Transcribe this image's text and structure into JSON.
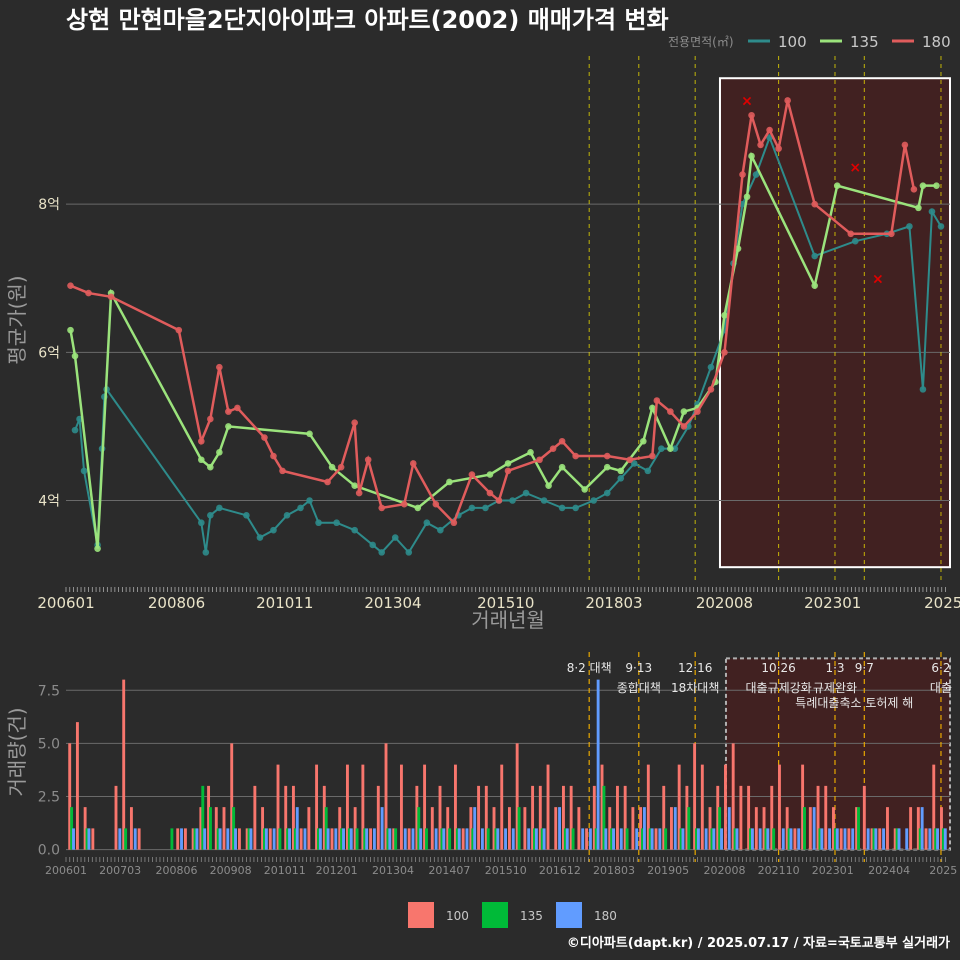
{
  "title": "상현 만현마을2단지아이파크 아파트(2002) 매매가격 변화",
  "credit": "©디아파트(dapt.kr) / 2025.07.17 / 자료=국토교통부 실거래가",
  "colors": {
    "bg": "#2b2b2b",
    "s100_line": "#2e8b8b",
    "s135": "#9be37c",
    "s180": "#e05c5c",
    "v100": "#f8766d",
    "v135": "#00ba38",
    "v180": "#619cff",
    "event": "#e8d800",
    "highlight": "#4a1f1f"
  },
  "chart_data": [
    {
      "type": "line",
      "title": "상현 만현마을2단지아이파크 아파트(2002) 매매가격 변화",
      "xlabel": "거래년월",
      "ylabel": "평균가(원)",
      "x_ticks": [
        "200601",
        "200806",
        "201011",
        "201304",
        "201510",
        "201803",
        "202008",
        "202301",
        "2025"
      ],
      "y_ticks": [
        {
          "value": 4,
          "label": "4억"
        },
        {
          "value": 6,
          "label": "6억"
        },
        {
          "value": 8,
          "label": "8억"
        }
      ],
      "x_range": [
        2006.0,
        2025.6
      ],
      "y_range": [
        2.9,
        10.0
      ],
      "legend_title": "전용면적(㎡)",
      "legend": [
        "100",
        "135",
        "180"
      ],
      "grid": true,
      "highlight_range": [
        "2020.5",
        "2025.6"
      ],
      "series": [
        {
          "name": "100",
          "values": [
            [
              2006.2,
              4.95
            ],
            [
              2006.3,
              5.1
            ],
            [
              2006.4,
              4.4
            ],
            [
              2006.7,
              3.4
            ],
            [
              2006.8,
              4.7
            ],
            [
              2006.85,
              5.4
            ],
            [
              2006.9,
              5.5
            ],
            [
              2009.0,
              3.7
            ],
            [
              2009.1,
              3.3
            ],
            [
              2009.2,
              3.8
            ],
            [
              2009.4,
              3.9
            ],
            [
              2010.0,
              3.8
            ],
            [
              2010.3,
              3.5
            ],
            [
              2010.6,
              3.6
            ],
            [
              2010.9,
              3.8
            ],
            [
              2011.2,
              3.9
            ],
            [
              2011.4,
              4.0
            ],
            [
              2011.6,
              3.7
            ],
            [
              2012.0,
              3.7
            ],
            [
              2012.4,
              3.6
            ],
            [
              2012.8,
              3.4
            ],
            [
              2013.0,
              3.3
            ],
            [
              2013.3,
              3.5
            ],
            [
              2013.6,
              3.3
            ],
            [
              2014.0,
              3.7
            ],
            [
              2014.3,
              3.6
            ],
            [
              2014.7,
              3.8
            ],
            [
              2015.0,
              3.9
            ],
            [
              2015.3,
              3.9
            ],
            [
              2015.6,
              4.0
            ],
            [
              2015.9,
              4.0
            ],
            [
              2016.2,
              4.1
            ],
            [
              2016.6,
              4.0
            ],
            [
              2017.0,
              3.9
            ],
            [
              2017.3,
              3.9
            ],
            [
              2017.7,
              4.0
            ],
            [
              2018.0,
              4.1
            ],
            [
              2018.3,
              4.3
            ],
            [
              2018.6,
              4.5
            ],
            [
              2018.9,
              4.4
            ],
            [
              2019.2,
              4.7
            ],
            [
              2019.5,
              4.7
            ],
            [
              2019.8,
              5.0
            ],
            [
              2020.0,
              5.3
            ],
            [
              2020.3,
              5.8
            ],
            [
              2020.6,
              6.3
            ],
            [
              2020.8,
              7.2
            ],
            [
              2021.0,
              8.0
            ],
            [
              2021.3,
              8.4
            ],
            [
              2021.6,
              8.9
            ],
            [
              2022.6,
              7.3
            ],
            [
              2023.5,
              7.5
            ],
            [
              2024.2,
              7.6
            ],
            [
              2024.7,
              7.7
            ],
            [
              2025.0,
              5.5
            ],
            [
              2025.2,
              7.9
            ],
            [
              2025.4,
              7.7
            ]
          ]
        },
        {
          "name": "135",
          "values": [
            [
              2006.1,
              6.3
            ],
            [
              2006.2,
              5.95
            ],
            [
              2006.7,
              3.35
            ],
            [
              2007.0,
              6.8
            ],
            [
              2009.0,
              4.55
            ],
            [
              2009.2,
              4.45
            ],
            [
              2009.4,
              4.65
            ],
            [
              2009.6,
              5.0
            ],
            [
              2011.4,
              4.9
            ],
            [
              2011.9,
              4.45
            ],
            [
              2012.4,
              4.2
            ],
            [
              2013.8,
              3.9
            ],
            [
              2014.5,
              4.25
            ],
            [
              2015.4,
              4.35
            ],
            [
              2015.8,
              4.5
            ],
            [
              2016.3,
              4.65
            ],
            [
              2016.7,
              4.2
            ],
            [
              2017.0,
              4.45
            ],
            [
              2017.5,
              4.15
            ],
            [
              2018.0,
              4.45
            ],
            [
              2018.3,
              4.4
            ],
            [
              2018.8,
              4.8
            ],
            [
              2019.0,
              5.25
            ],
            [
              2019.4,
              4.7
            ],
            [
              2019.7,
              5.2
            ],
            [
              2020.0,
              5.25
            ],
            [
              2020.4,
              5.6
            ],
            [
              2020.6,
              6.5
            ],
            [
              2020.9,
              7.4
            ],
            [
              2021.1,
              8.1
            ],
            [
              2021.2,
              8.65
            ],
            [
              2022.6,
              6.9
            ],
            [
              2023.1,
              8.25
            ],
            [
              2024.9,
              7.95
            ],
            [
              2025.0,
              8.25
            ],
            [
              2025.3,
              8.25
            ]
          ]
        },
        {
          "name": "180",
          "values": [
            [
              2006.1,
              6.9
            ],
            [
              2006.5,
              6.8
            ],
            [
              2007.0,
              6.75
            ],
            [
              2008.5,
              6.3
            ],
            [
              2009.0,
              4.8
            ],
            [
              2009.2,
              5.1
            ],
            [
              2009.4,
              5.8
            ],
            [
              2009.6,
              5.2
            ],
            [
              2009.8,
              5.25
            ],
            [
              2010.4,
              4.85
            ],
            [
              2010.6,
              4.6
            ],
            [
              2010.8,
              4.4
            ],
            [
              2011.8,
              4.25
            ],
            [
              2012.1,
              4.45
            ],
            [
              2012.4,
              5.05
            ],
            [
              2012.5,
              4.1
            ],
            [
              2012.7,
              4.55
            ],
            [
              2013.0,
              3.9
            ],
            [
              2013.5,
              3.95
            ],
            [
              2013.7,
              4.5
            ],
            [
              2014.2,
              3.95
            ],
            [
              2014.6,
              3.7
            ],
            [
              2015.0,
              4.35
            ],
            [
              2015.4,
              4.1
            ],
            [
              2015.6,
              4.0
            ],
            [
              2015.8,
              4.4
            ],
            [
              2016.5,
              4.55
            ],
            [
              2016.8,
              4.7
            ],
            [
              2017.0,
              4.8
            ],
            [
              2017.3,
              4.6
            ],
            [
              2018.0,
              4.6
            ],
            [
              2018.5,
              4.55
            ],
            [
              2019.0,
              4.6
            ],
            [
              2019.1,
              5.35
            ],
            [
              2019.4,
              5.2
            ],
            [
              2019.7,
              5.0
            ],
            [
              2020.0,
              5.2
            ],
            [
              2020.3,
              5.5
            ],
            [
              2020.6,
              6.0
            ],
            [
              2021.0,
              8.4
            ],
            [
              2021.2,
              9.2
            ],
            [
              2021.4,
              8.8
            ],
            [
              2021.6,
              9.0
            ],
            [
              2021.8,
              8.75
            ],
            [
              2022.0,
              9.4
            ],
            [
              2022.6,
              8.0
            ],
            [
              2023.4,
              7.6
            ],
            [
              2024.3,
              7.6
            ],
            [
              2024.6,
              8.8
            ],
            [
              2024.8,
              8.2
            ]
          ]
        }
      ],
      "markers": [
        {
          "label": "×",
          "x": 2021.1,
          "y": 9.4,
          "series": "180"
        },
        {
          "label": "×",
          "x": 2024.0,
          "y": 7.0,
          "series": "180"
        },
        {
          "label": "×",
          "x": 2023.5,
          "y": 8.5,
          "series": "180"
        }
      ]
    },
    {
      "type": "bar",
      "xlabel": "",
      "ylabel": "거래량(건)",
      "x_ticks": [
        "200601",
        "200703",
        "200806",
        "200908",
        "201011",
        "201201",
        "201304",
        "201407",
        "201510",
        "201612",
        "201803",
        "201905",
        "202008",
        "202110",
        "202301",
        "202404",
        "2025"
      ],
      "y_ticks": [
        {
          "value": 0,
          "label": "0.0"
        },
        {
          "value": 2.5,
          "label": "2.5"
        },
        {
          "value": 5,
          "label": "5.0"
        },
        {
          "value": 7.5,
          "label": "7.5"
        }
      ],
      "y_range": [
        -0.3,
        9.3
      ],
      "legend": [
        "100",
        "135",
        "180"
      ],
      "series": [
        {
          "name": "100",
          "values": [
            5,
            6,
            2,
            1,
            0,
            0,
            3,
            8,
            2,
            1,
            0,
            0,
            0,
            0,
            1,
            1,
            1,
            2,
            3,
            2,
            2,
            5,
            1,
            1,
            3,
            2,
            1,
            4,
            3,
            3,
            1,
            2,
            4,
            3,
            1,
            2,
            4,
            2,
            4,
            1,
            3,
            5,
            1,
            4,
            1,
            3,
            4,
            2,
            3,
            2,
            4,
            1,
            2,
            3,
            3,
            2,
            4,
            2,
            5,
            2,
            3,
            3,
            4,
            2,
            3,
            3,
            2,
            1,
            3,
            4,
            2,
            3,
            3,
            2,
            2,
            4,
            1,
            3,
            2,
            4,
            3,
            5,
            4,
            2,
            3,
            4,
            5,
            3,
            3,
            2,
            2,
            3,
            4,
            2,
            1,
            4,
            2,
            3,
            3,
            2,
            1,
            1,
            2,
            3,
            1,
            1,
            2,
            1,
            0,
            2,
            2,
            1,
            4,
            2
          ]
        },
        {
          "name": "135",
          "values": [
            2,
            0,
            1,
            0,
            0,
            0,
            0,
            1,
            0,
            0,
            0,
            0,
            0,
            1,
            0,
            0,
            1,
            3,
            2,
            1,
            0,
            2,
            0,
            1,
            0,
            1,
            0,
            1,
            1,
            1,
            0,
            0,
            1,
            2,
            0,
            1,
            1,
            1,
            1,
            0,
            0,
            1,
            1,
            0,
            0,
            2,
            1,
            0,
            1,
            1,
            1,
            0,
            1,
            0,
            1,
            1,
            0,
            0,
            2,
            0,
            1,
            1,
            0,
            0,
            1,
            1,
            0,
            0,
            1,
            3,
            1,
            0,
            1,
            0,
            1,
            1,
            0,
            1,
            0,
            1,
            2,
            1,
            0,
            1,
            2,
            0,
            1,
            0,
            1,
            0,
            1,
            1,
            0,
            1,
            0,
            2,
            0,
            1,
            0,
            1,
            0,
            0,
            2,
            0,
            1,
            0,
            0,
            1,
            0,
            0,
            1,
            0,
            1,
            1
          ]
        },
        {
          "name": "180",
          "values": [
            1,
            0,
            1,
            0,
            0,
            0,
            1,
            0,
            1,
            0,
            0,
            0,
            0,
            0,
            1,
            0,
            1,
            1,
            0,
            1,
            1,
            1,
            0,
            1,
            0,
            1,
            1,
            0,
            1,
            2,
            1,
            0,
            1,
            1,
            1,
            1,
            1,
            0,
            1,
            1,
            2,
            1,
            0,
            1,
            1,
            1,
            0,
            1,
            1,
            0,
            1,
            1,
            2,
            1,
            0,
            1,
            1,
            1,
            0,
            1,
            1,
            1,
            0,
            2,
            1,
            0,
            1,
            1,
            8,
            1,
            1,
            1,
            0,
            1,
            2,
            1,
            1,
            0,
            2,
            1,
            0,
            1,
            1,
            1,
            1,
            2,
            1,
            0,
            1,
            1,
            1,
            0,
            1,
            1,
            1,
            0,
            2,
            1,
            1,
            1,
            1,
            1,
            0,
            1,
            1,
            1,
            0,
            1,
            1,
            0,
            2,
            1,
            1,
            1
          ]
        }
      ]
    }
  ],
  "events": [
    {
      "date": "201708",
      "x": 2017.6,
      "label": "8·2 대책",
      "sub": ""
    },
    {
      "date": "201809",
      "x": 2018.7,
      "label": "9·13",
      "sub": "종합대책"
    },
    {
      "date": "201912",
      "x": 2019.95,
      "label": "12·16",
      "sub": "18차대책"
    },
    {
      "date": "202010",
      "x": 2021.8,
      "label": "10·26",
      "sub": "대출규제강화"
    },
    {
      "date": "202301",
      "x": 2023.05,
      "label": "1·3",
      "sub": "규제완화"
    },
    {
      "date": "202309",
      "x": 2023.7,
      "label": "9·7",
      "sub": "특례대출축소 토허제 해"
    },
    {
      "date": "202506",
      "x": 2025.4,
      "label": "6·2",
      "sub": "대출"
    }
  ]
}
